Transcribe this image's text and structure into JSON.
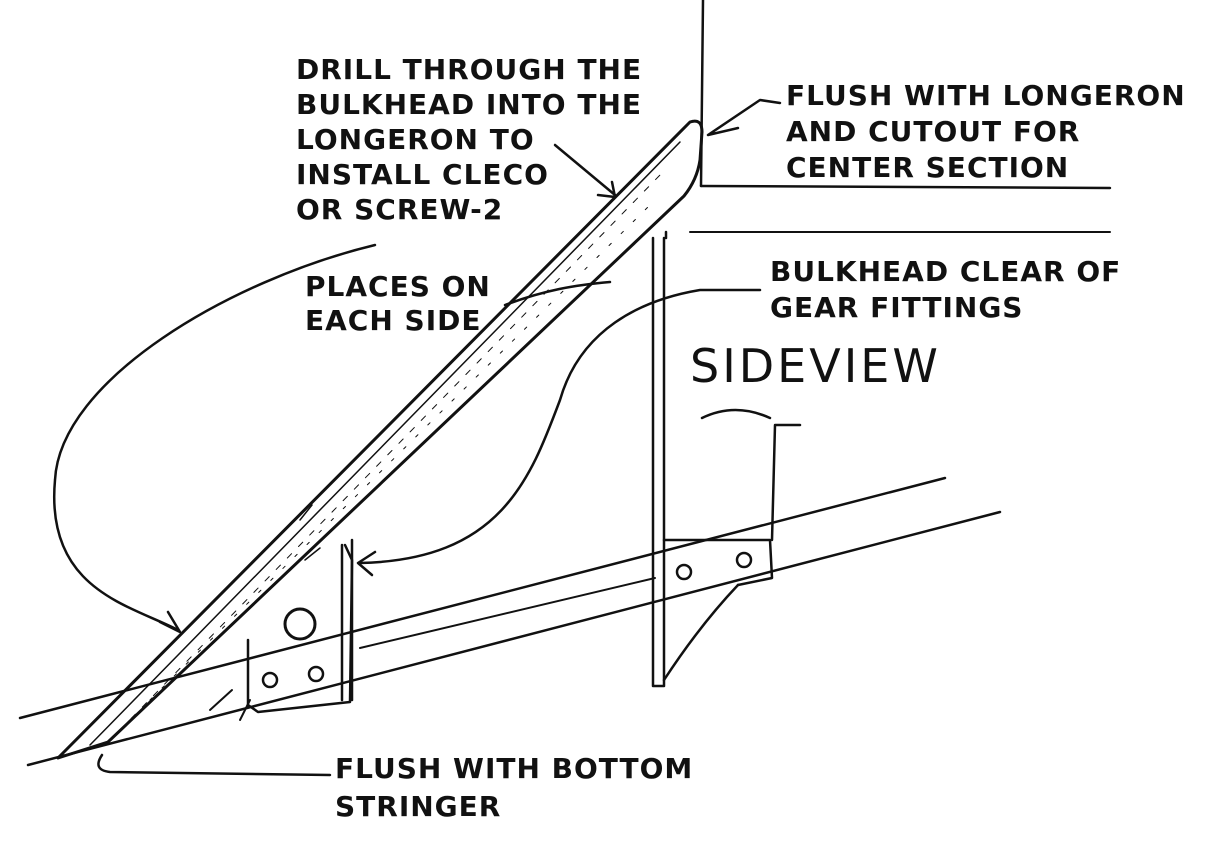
{
  "annotations": {
    "drill_note": "DRILL THROUGH THE\nBULKHEAD INTO THE\nLONGERON TO\nINSTALL CLECO\nOR SCREW-2",
    "places_note": "PLACES ON\nEACH SIDE",
    "flush_longeron_note": "FLUSH WITH LONGERON\nAND CUTOUT FOR\nCENTER SECTION",
    "bulkhead_clear_note": "BULKHEAD CLEAR OF\nGEAR FITTINGS",
    "side_view_label": "SIDEVIEW",
    "flush_bottom_note": "FLUSH WITH BOTTOM\nSTRINGER"
  },
  "colors": {
    "ink": "#111111",
    "paper": "#ffffff"
  }
}
